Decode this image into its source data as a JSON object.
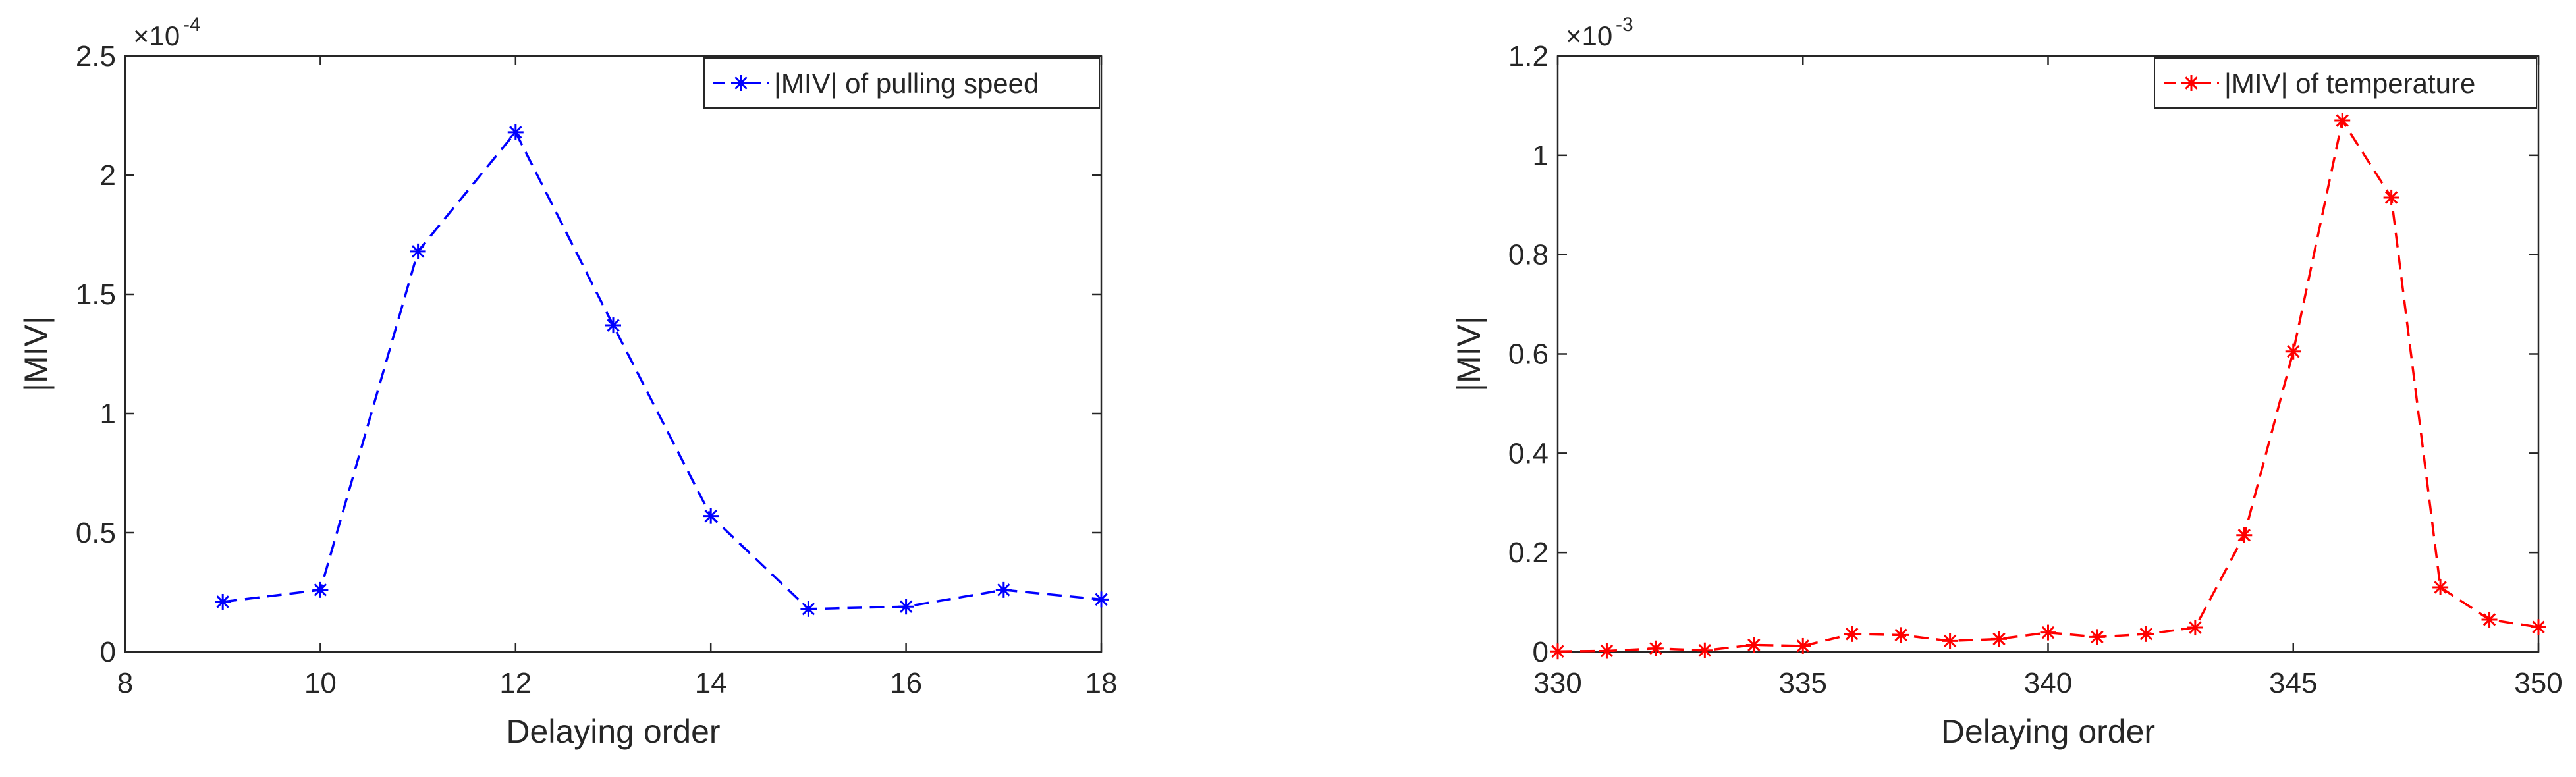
{
  "chart_data": [
    {
      "type": "line",
      "xlabel": "Delaying order",
      "ylabel": "|MIV|",
      "exponent_label": "×10",
      "exponent_power": "-4",
      "xlim": [
        8,
        18
      ],
      "ylim": [
        0,
        2.5
      ],
      "xticks": [
        "8",
        "10",
        "12",
        "14",
        "16",
        "18"
      ],
      "yticks": [
        "0",
        "0.5",
        "1",
        "1.5",
        "2",
        "2.5"
      ],
      "legend_position": "top-right",
      "grid": false,
      "series": [
        {
          "name": "|MIV| of pulling speed",
          "color": "#0000ff",
          "line_style": "dashed",
          "marker": "asterisk",
          "x": [
            9,
            10,
            11,
            12,
            13,
            14,
            15,
            16,
            17,
            18
          ],
          "y": [
            0.21,
            0.26,
            1.68,
            2.18,
            1.37,
            0.57,
            0.18,
            0.19,
            0.26,
            0.22
          ]
        }
      ]
    },
    {
      "type": "line",
      "xlabel": "Delaying order",
      "ylabel": "|MIV|",
      "exponent_label": "×10",
      "exponent_power": "-3",
      "xlim": [
        330,
        350
      ],
      "ylim": [
        0,
        1.2
      ],
      "xticks": [
        "330",
        "335",
        "340",
        "345",
        "350"
      ],
      "yticks": [
        "0",
        "0.2",
        "0.4",
        "0.6",
        "0.8",
        "1",
        "1.2"
      ],
      "legend_position": "top-right",
      "grid": false,
      "series": [
        {
          "name": "|MIV| of temperature",
          "color": "#ff0000",
          "line_style": "dashed",
          "marker": "asterisk",
          "x": [
            330,
            331,
            332,
            333,
            334,
            335,
            336,
            337,
            338,
            339,
            340,
            341,
            342,
            343,
            344,
            345,
            346,
            347,
            348,
            349,
            350
          ],
          "y": [
            0.001,
            0.002,
            0.007,
            0.003,
            0.014,
            0.012,
            0.036,
            0.034,
            0.022,
            0.026,
            0.039,
            0.03,
            0.036,
            0.049,
            0.235,
            0.605,
            1.07,
            0.915,
            0.13,
            0.065,
            0.05
          ]
        }
      ]
    }
  ]
}
